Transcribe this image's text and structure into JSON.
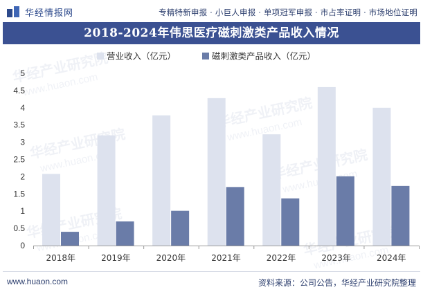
{
  "header": {
    "logo_text": "华经情报网",
    "services": "专精特新申报 · 小巨人申报 · 单项冠军申报 · 市占率证明 · 市场地位证明"
  },
  "colors": {
    "title_bg": "#3b5192",
    "series_revenue": "#dde2ee",
    "series_product": "#6a7ca8"
  },
  "watermark": {
    "cn": "华经产业研究院",
    "en": "www.huaon.com"
  },
  "chart_data": {
    "type": "bar",
    "title": "2018-2024年伟思医疗磁刺激类产品收入情况",
    "categories": [
      "2018年",
      "2019年",
      "2020年",
      "2021年",
      "2022年",
      "2023年",
      "2024年"
    ],
    "series": [
      {
        "name": "营业收入（亿元）",
        "values": [
          2.08,
          3.2,
          3.78,
          4.28,
          3.23,
          4.6,
          4.0
        ]
      },
      {
        "name": "磁刺激类产品收入（亿元）",
        "values": [
          0.4,
          0.7,
          1.01,
          1.7,
          1.37,
          2.01,
          1.73
        ]
      }
    ],
    "yticks": [
      "0",
      "0.5",
      "1",
      "1.5",
      "2",
      "2.5",
      "3",
      "3.5",
      "4",
      "4.5",
      "5"
    ],
    "ylim": [
      0,
      5
    ],
    "legend": "top-center",
    "grid": false
  },
  "footer": {
    "website": "www.huaon.com",
    "source": "资料来源：公司公告，华经产业研究院整理"
  }
}
